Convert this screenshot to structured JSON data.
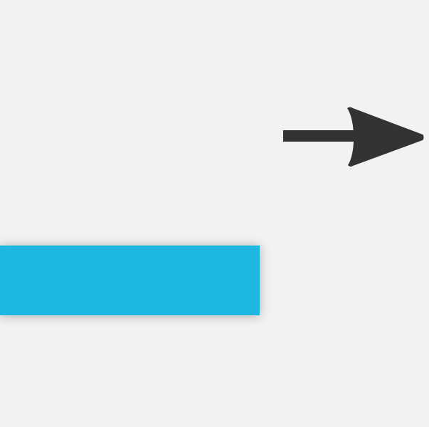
{
  "arrow": {
    "icon": "arrow-right-icon",
    "color": "#333333"
  },
  "bar": {
    "color": "#1db7e1",
    "label": ""
  },
  "background": "#f2f2f2"
}
